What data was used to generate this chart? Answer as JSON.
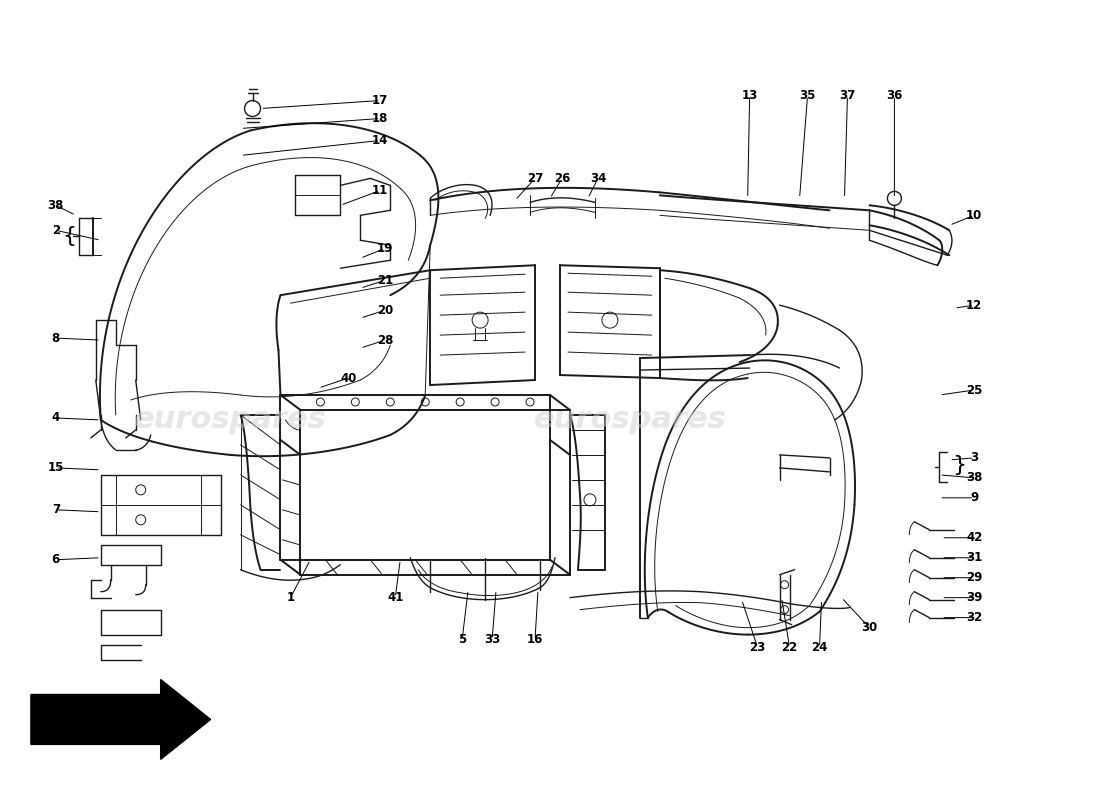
{
  "bg_color": "#ffffff",
  "line_color": "#1a1a1a",
  "watermark_color": "#d0d0d0",
  "fig_width": 11.0,
  "fig_height": 8.0,
  "dpi": 100,
  "leaders": [
    [
      "17",
      380,
      100,
      260,
      108
    ],
    [
      "18",
      380,
      118,
      240,
      128
    ],
    [
      "14",
      380,
      140,
      240,
      155
    ],
    [
      "11",
      380,
      190,
      340,
      205
    ],
    [
      "19",
      385,
      248,
      360,
      258
    ],
    [
      "21",
      385,
      280,
      360,
      288
    ],
    [
      "20",
      385,
      310,
      360,
      318
    ],
    [
      "28",
      385,
      340,
      360,
      348
    ],
    [
      "40",
      348,
      378,
      318,
      388
    ],
    [
      "2",
      55,
      230,
      100,
      240
    ],
    [
      "38",
      55,
      205,
      75,
      215
    ],
    [
      "8",
      55,
      338,
      100,
      340
    ],
    [
      "4",
      55,
      418,
      100,
      420
    ],
    [
      "15",
      55,
      468,
      100,
      470
    ],
    [
      "7",
      55,
      510,
      100,
      512
    ],
    [
      "6",
      55,
      560,
      100,
      558
    ],
    [
      "1",
      290,
      598,
      310,
      560
    ],
    [
      "41",
      395,
      598,
      400,
      560
    ],
    [
      "5",
      462,
      640,
      468,
      590
    ],
    [
      "33",
      492,
      640,
      496,
      590
    ],
    [
      "16",
      535,
      640,
      538,
      590
    ],
    [
      "27",
      535,
      178,
      515,
      200
    ],
    [
      "26",
      562,
      178,
      550,
      198
    ],
    [
      "34",
      598,
      178,
      588,
      198
    ],
    [
      "13",
      750,
      95,
      748,
      198
    ],
    [
      "35",
      808,
      95,
      800,
      198
    ],
    [
      "37",
      848,
      95,
      845,
      198
    ],
    [
      "36",
      895,
      95,
      895,
      198
    ],
    [
      "10",
      975,
      215,
      950,
      225
    ],
    [
      "12",
      975,
      305,
      955,
      308
    ],
    [
      "25",
      975,
      390,
      940,
      395
    ],
    [
      "3",
      975,
      458,
      950,
      460
    ],
    [
      "38",
      975,
      478,
      940,
      475
    ],
    [
      "9",
      975,
      498,
      940,
      498
    ],
    [
      "42",
      975,
      538,
      942,
      538
    ],
    [
      "31",
      975,
      558,
      942,
      558
    ],
    [
      "29",
      975,
      578,
      942,
      578
    ],
    [
      "39",
      975,
      598,
      942,
      598
    ],
    [
      "30",
      870,
      628,
      842,
      598
    ],
    [
      "32",
      975,
      618,
      942,
      618
    ],
    [
      "23",
      758,
      648,
      742,
      600
    ],
    [
      "22",
      790,
      648,
      782,
      598
    ],
    [
      "24",
      820,
      648,
      822,
      600
    ]
  ]
}
